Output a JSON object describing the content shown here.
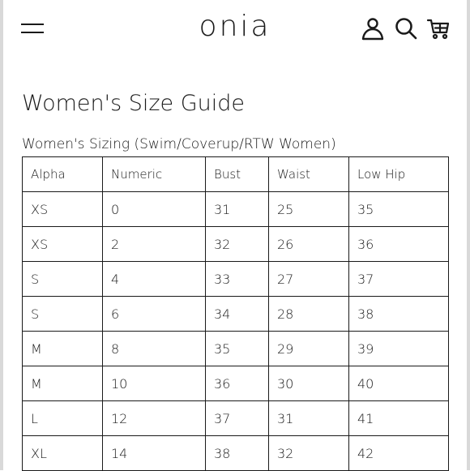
{
  "header": {
    "logo_text": "onia",
    "icons": [
      "menu-icon",
      "account-icon",
      "search-icon",
      "cart-icon"
    ]
  },
  "page": {
    "title": "Women's Size Guide"
  },
  "size_table": {
    "caption": "Women's Sizing (Swim/Coverup/RTW Women)",
    "columns": [
      "Alpha",
      "Numeric",
      "Bust",
      "Waist",
      "Low Hip"
    ],
    "rows": [
      [
        "XS",
        "0",
        "31",
        "25",
        "35"
      ],
      [
        "XS",
        "2",
        "32",
        "26",
        "36"
      ],
      [
        "S",
        "4",
        "33",
        "27",
        "37"
      ],
      [
        "S",
        "6",
        "34",
        "28",
        "38"
      ],
      [
        "M",
        "8",
        "35",
        "29",
        "39"
      ],
      [
        "M",
        "10",
        "36",
        "30",
        "40"
      ],
      [
        "L",
        "12",
        "37",
        "31",
        "41"
      ],
      [
        "XL",
        "14",
        "38",
        "32",
        "42"
      ]
    ]
  },
  "colors": {
    "text": "#1a1a1a",
    "background": "#ffffff",
    "frame": "#d9d9d9"
  }
}
